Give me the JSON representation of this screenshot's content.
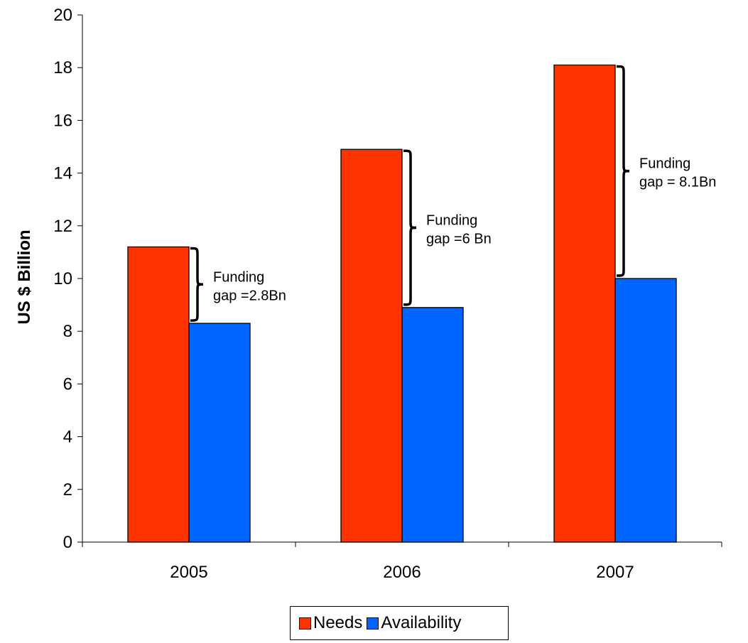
{
  "chart_data": {
    "type": "bar",
    "categories": [
      "2005",
      "2006",
      "2007"
    ],
    "series": [
      {
        "name": "Needs",
        "values": [
          11.2,
          14.9,
          18.1
        ],
        "color": "#FF3300"
      },
      {
        "name": "Availability",
        "values": [
          8.3,
          8.9,
          10.0
        ],
        "color": "#0066FF"
      }
    ],
    "ylabel": "US $ Billion",
    "xlabel": "",
    "title": "",
    "ylim": [
      0,
      20
    ],
    "yticks": [
      "0",
      "2",
      "4",
      "6",
      "8",
      "10",
      "12",
      "14",
      "16",
      "18",
      "20"
    ],
    "grid": false,
    "legend_position": "bottom",
    "annotations": [
      {
        "category": "2005",
        "lines": [
          "Funding",
          "gap =2.8Bn"
        ]
      },
      {
        "category": "2006",
        "lines": [
          "Funding",
          "gap =6 Bn"
        ]
      },
      {
        "category": "2007",
        "lines": [
          "Funding",
          "gap = 8.1Bn"
        ]
      }
    ]
  }
}
